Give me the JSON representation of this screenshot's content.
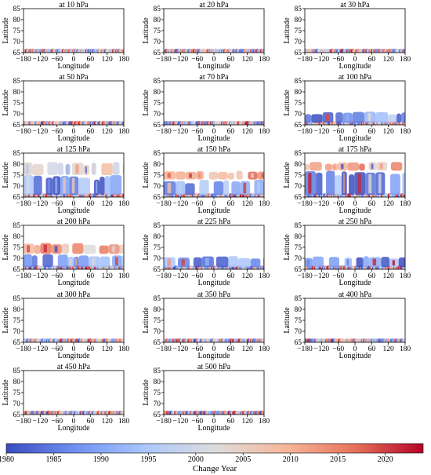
{
  "figure": {
    "colorbar": {
      "label": "Change Year",
      "ticks": [
        1980,
        1985,
        1990,
        1995,
        2000,
        2005,
        2010,
        2015,
        2020
      ],
      "range": [
        1980,
        2024
      ],
      "colormap": [
        "#3b4cc0",
        "#6f92f3",
        "#aac7fd",
        "#dddcdc",
        "#f7b89c",
        "#e7745b",
        "#b40426"
      ]
    }
  },
  "chart_data": [
    {
      "type": "scatter",
      "title": "at 10 hPa",
      "xlabel": "Longitude",
      "ylabel": "Latitude",
      "xlim": [
        -180,
        180
      ],
      "ylim": [
        65,
        85
      ],
      "xticks": [
        -180,
        -120,
        -60,
        0,
        60,
        120,
        180
      ],
      "xtick_labels": [
        "−180",
        "−120",
        "−60",
        "0",
        "60",
        "120",
        "180"
      ],
      "yticks": [
        65,
        70,
        75,
        80,
        85
      ],
      "bands": [
        {
          "lat": [
            65,
            65.8
          ],
          "years": "mixed"
        }
      ]
    },
    {
      "type": "scatter",
      "title": "at 20 hPa",
      "xlabel": "Longitude",
      "ylabel": "Latitude",
      "xlim": [
        -180,
        180
      ],
      "ylim": [
        65,
        85
      ],
      "xticks": [
        -180,
        -120,
        -60,
        0,
        60,
        120,
        180
      ],
      "xtick_labels": [
        "−180",
        "−120",
        "−60",
        "0",
        "60",
        "120",
        "180"
      ],
      "yticks": [
        65,
        70,
        75,
        80,
        85
      ],
      "bands": [
        {
          "lat": [
            65,
            65.8
          ],
          "years": "mixed"
        }
      ]
    },
    {
      "type": "scatter",
      "title": "at 30 hPa",
      "xlabel": "Longitude",
      "ylabel": "Latitude",
      "xlim": [
        -180,
        180
      ],
      "ylim": [
        65,
        85
      ],
      "xticks": [
        -180,
        -120,
        -60,
        0,
        60,
        120,
        180
      ],
      "xtick_labels": [
        "−180",
        "−120",
        "−60",
        "0",
        "60",
        "120",
        "180"
      ],
      "yticks": [
        65,
        70,
        75,
        80,
        85
      ],
      "bands": [
        {
          "lat": [
            65,
            65.8
          ],
          "years": "mixed"
        }
      ]
    },
    {
      "type": "scatter",
      "title": "at 50 hPa",
      "xlabel": "Longitude",
      "ylabel": "Latitude",
      "xlim": [
        -180,
        180
      ],
      "ylim": [
        65,
        85
      ],
      "xticks": [
        -180,
        -120,
        -60,
        0,
        60,
        120,
        180
      ],
      "xtick_labels": [
        "−180",
        "−120",
        "−60",
        "0",
        "60",
        "120",
        "180"
      ],
      "yticks": [
        65,
        70,
        75,
        80,
        85
      ],
      "bands": [
        {
          "lat": [
            65,
            65.8
          ],
          "years": "mixed"
        }
      ]
    },
    {
      "type": "scatter",
      "title": "at 70 hPa",
      "xlabel": "Longitude",
      "ylabel": "Latitude",
      "xlim": [
        -180,
        180
      ],
      "ylim": [
        65,
        85
      ],
      "xticks": [
        -180,
        -120,
        -60,
        0,
        60,
        120,
        180
      ],
      "xtick_labels": [
        "−180",
        "−120",
        "−60",
        "0",
        "60",
        "120",
        "180"
      ],
      "yticks": [
        65,
        70,
        75,
        80,
        85
      ],
      "bands": [
        {
          "lat": [
            65,
            65.8
          ],
          "years": "mixed"
        }
      ]
    },
    {
      "type": "scatter",
      "title": "at 100 hPa",
      "xlabel": "Longitude",
      "ylabel": "Latitude",
      "xlim": [
        -180,
        180
      ],
      "ylim": [
        65,
        85
      ],
      "xticks": [
        -180,
        -120,
        -60,
        0,
        60,
        120,
        180
      ],
      "xtick_labels": [
        "−180",
        "−120",
        "−60",
        "0",
        "60",
        "120",
        "180"
      ],
      "yticks": [
        65,
        70,
        75,
        80,
        85
      ],
      "bands": [
        {
          "lat": [
            65,
            65.8
          ],
          "years": "mixed"
        },
        {
          "lat": [
            66,
            71
          ],
          "years": "mixed",
          "dominant": 1988
        }
      ]
    },
    {
      "type": "scatter",
      "title": "at 125 hPa",
      "xlabel": "Longitude",
      "ylabel": "Latitude",
      "xlim": [
        -180,
        180
      ],
      "ylim": [
        65,
        85
      ],
      "xticks": [
        -180,
        -120,
        -60,
        0,
        60,
        120,
        180
      ],
      "xtick_labels": [
        "−180",
        "−120",
        "−60",
        "0",
        "60",
        "120",
        "180"
      ],
      "yticks": [
        65,
        70,
        75,
        80,
        85
      ],
      "bands": [
        {
          "lat": [
            65,
            65.8
          ],
          "years": "mixed"
        },
        {
          "lat": [
            66,
            75
          ],
          "years": "mixed",
          "dominant": 1988
        },
        {
          "lat": [
            75,
            81
          ],
          "years": "mixed",
          "dominant": 2000
        }
      ]
    },
    {
      "type": "scatter",
      "title": "at 150 hPa",
      "xlabel": "Longitude",
      "ylabel": "Latitude",
      "xlim": [
        -180,
        180
      ],
      "ylim": [
        65,
        85
      ],
      "xticks": [
        -180,
        -120,
        -60,
        0,
        60,
        120,
        180
      ],
      "xtick_labels": [
        "−180",
        "−120",
        "−60",
        "0",
        "60",
        "120",
        "180"
      ],
      "yticks": [
        65,
        70,
        75,
        80,
        85
      ],
      "bands": [
        {
          "lat": [
            65,
            65.8
          ],
          "years": "mixed"
        },
        {
          "lat": [
            66,
            73
          ],
          "years": "mixed",
          "dominant": 1988
        },
        {
          "lat": [
            73,
            77
          ],
          "years": "mixed",
          "dominant": 2010
        }
      ]
    },
    {
      "type": "scatter",
      "title": "at 175 hPa",
      "xlabel": "Longitude",
      "ylabel": "Latitude",
      "xlim": [
        -180,
        180
      ],
      "ylim": [
        65,
        85
      ],
      "xticks": [
        -180,
        -120,
        -60,
        0,
        60,
        120,
        180
      ],
      "xtick_labels": [
        "−180",
        "−120",
        "−60",
        "0",
        "60",
        "120",
        "180"
      ],
      "yticks": [
        65,
        70,
        75,
        80,
        85
      ],
      "bands": [
        {
          "lat": [
            65,
            65.8
          ],
          "years": "mixed"
        },
        {
          "lat": [
            66,
            77
          ],
          "years": "mixed",
          "dominant": 1988
        },
        {
          "lat": [
            77,
            81
          ],
          "years": "mixed",
          "dominant": 2010
        }
      ]
    },
    {
      "type": "scatter",
      "title": "at 200 hPa",
      "xlabel": "Longitude",
      "ylabel": "Latitude",
      "xlim": [
        -180,
        180
      ],
      "ylim": [
        65,
        85
      ],
      "xticks": [
        -180,
        -120,
        -60,
        0,
        60,
        120,
        180
      ],
      "xtick_labels": [
        "−180",
        "−120",
        "−60",
        "0",
        "60",
        "120",
        "180"
      ],
      "yticks": [
        65,
        70,
        75,
        80,
        85
      ],
      "bands": [
        {
          "lat": [
            65,
            65.8
          ],
          "years": "mixed"
        },
        {
          "lat": [
            66,
            72
          ],
          "years": "mixed",
          "dominant": 1990
        },
        {
          "lat": [
            72,
            77
          ],
          "years": "mixed",
          "dominant": 2010
        }
      ]
    },
    {
      "type": "scatter",
      "title": "at 225 hPa",
      "xlabel": "Longitude",
      "ylabel": "Latitude",
      "xlim": [
        -180,
        180
      ],
      "ylim": [
        65,
        85
      ],
      "xticks": [
        -180,
        -120,
        -60,
        0,
        60,
        120,
        180
      ],
      "xtick_labels": [
        "−180",
        "−120",
        "−60",
        "0",
        "60",
        "120",
        "180"
      ],
      "yticks": [
        65,
        70,
        75,
        80,
        85
      ],
      "bands": [
        {
          "lat": [
            65,
            65.8
          ],
          "years": "mixed"
        },
        {
          "lat": [
            66,
            71
          ],
          "years": "mixed",
          "dominant": 1990
        }
      ]
    },
    {
      "type": "scatter",
      "title": "at 250 hPa",
      "xlabel": "Longitude",
      "ylabel": "Latitude",
      "xlim": [
        -180,
        180
      ],
      "ylim": [
        65,
        85
      ],
      "xticks": [
        -180,
        -120,
        -60,
        0,
        60,
        120,
        180
      ],
      "xtick_labels": [
        "−180",
        "−120",
        "−60",
        "0",
        "60",
        "120",
        "180"
      ],
      "yticks": [
        65,
        70,
        75,
        80,
        85
      ],
      "bands": [
        {
          "lat": [
            65,
            65.8
          ],
          "years": "mixed"
        },
        {
          "lat": [
            66,
            71
          ],
          "years": "mixed",
          "dominant": 1988
        }
      ]
    },
    {
      "type": "scatter",
      "title": "at 300 hPa",
      "xlabel": "Longitude",
      "ylabel": "Latitude",
      "xlim": [
        -180,
        180
      ],
      "ylim": [
        65,
        85
      ],
      "xticks": [
        -180,
        -120,
        -60,
        0,
        60,
        120,
        180
      ],
      "xtick_labels": [
        "−180",
        "−120",
        "−60",
        "0",
        "60",
        "120",
        "180"
      ],
      "yticks": [
        65,
        70,
        75,
        80,
        85
      ],
      "bands": [
        {
          "lat": [
            65,
            65.8
          ],
          "years": "mixed"
        }
      ]
    },
    {
      "type": "scatter",
      "title": "at 350 hPa",
      "xlabel": "Longitude",
      "ylabel": "Latitude",
      "xlim": [
        -180,
        180
      ],
      "ylim": [
        65,
        85
      ],
      "xticks": [
        -180,
        -120,
        -60,
        0,
        60,
        120,
        180
      ],
      "xtick_labels": [
        "−180",
        "−120",
        "−60",
        "0",
        "60",
        "120",
        "180"
      ],
      "yticks": [
        65,
        70,
        75,
        80,
        85
      ],
      "bands": [
        {
          "lat": [
            65,
            65.8
          ],
          "years": "mixed"
        }
      ]
    },
    {
      "type": "scatter",
      "title": "at 400 hPa",
      "xlabel": "Longitude",
      "ylabel": "Latitude",
      "xlim": [
        -180,
        180
      ],
      "ylim": [
        65,
        85
      ],
      "xticks": [
        -180,
        -120,
        -60,
        0,
        60,
        120,
        180
      ],
      "xtick_labels": [
        "−180",
        "−120",
        "−60",
        "0",
        "60",
        "120",
        "180"
      ],
      "yticks": [
        65,
        70,
        75,
        80,
        85
      ],
      "bands": [
        {
          "lat": [
            65,
            65.8
          ],
          "years": "mixed"
        }
      ]
    },
    {
      "type": "scatter",
      "title": "at 450 hPa",
      "xlabel": "Longitude",
      "ylabel": "Latitude",
      "xlim": [
        -180,
        180
      ],
      "ylim": [
        65,
        85
      ],
      "xticks": [
        -180,
        -120,
        -60,
        0,
        60,
        120,
        180
      ],
      "xtick_labels": [
        "−180",
        "−120",
        "−60",
        "0",
        "60",
        "120",
        "180"
      ],
      "yticks": [
        65,
        70,
        75,
        80,
        85
      ],
      "bands": [
        {
          "lat": [
            65,
            65.8
          ],
          "years": "mixed"
        }
      ]
    },
    {
      "type": "scatter",
      "title": "at 500 hPa",
      "xlabel": "Longitude",
      "ylabel": "Latitude",
      "xlim": [
        -180,
        180
      ],
      "ylim": [
        65,
        85
      ],
      "xticks": [
        -180,
        -120,
        -60,
        0,
        60,
        120,
        180
      ],
      "xtick_labels": [
        "−180",
        "−120",
        "−60",
        "0",
        "60",
        "120",
        "180"
      ],
      "yticks": [
        65,
        70,
        75,
        80,
        85
      ],
      "bands": [
        {
          "lat": [
            65,
            65.8
          ],
          "years": "mixed"
        }
      ]
    }
  ]
}
